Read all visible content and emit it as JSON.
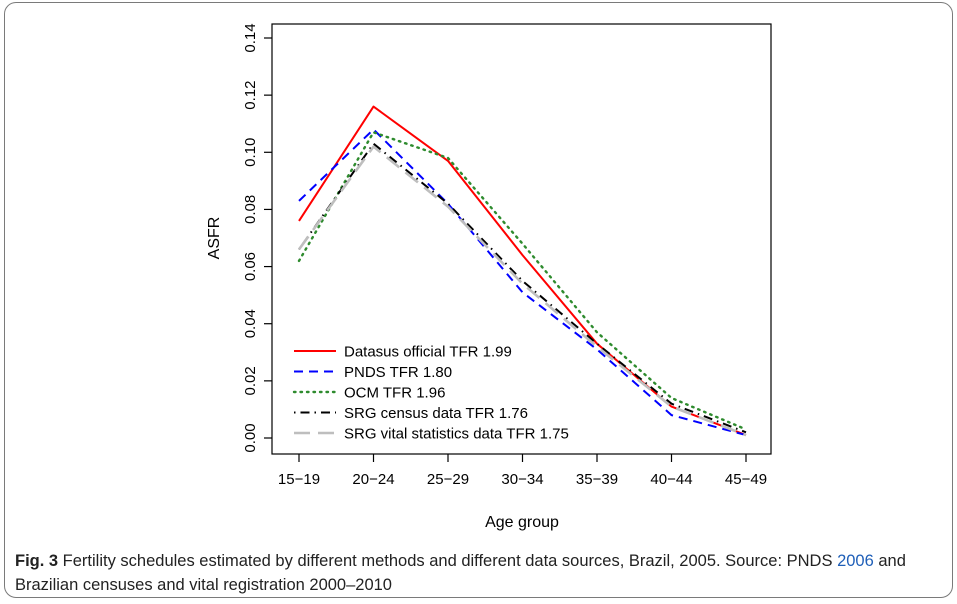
{
  "caption": {
    "label": "Fig. 3",
    "text_part1": " Fertility schedules estimated by different methods and different data sources, Brazil, 2005. Source: PNDS ",
    "link": "2006",
    "text_part2": " and Brazilian censuses and vital registration 2000–2010"
  },
  "chart_data": {
    "type": "line",
    "xlabel": "Age group",
    "ylabel": "ASFR",
    "categories": [
      "15−19",
      "20−24",
      "25−29",
      "30−34",
      "35−39",
      "40−44",
      "45−49"
    ],
    "ylim": [
      0,
      0.14
    ],
    "yticks": [
      0.0,
      0.02,
      0.04,
      0.06,
      0.08,
      0.1,
      0.12,
      0.14
    ],
    "ytick_labels": [
      "0.00",
      "0.02",
      "0.04",
      "0.06",
      "0.08",
      "0.10",
      "0.12",
      "0.14"
    ],
    "grid": false,
    "legend_position": "bottom-left",
    "series": [
      {
        "name": "Datasus official TFR 1.99",
        "color": "#ff0000",
        "dash": "solid",
        "values": [
          0.076,
          0.116,
          0.097,
          0.064,
          0.033,
          0.011,
          0.001
        ]
      },
      {
        "name": "PNDS TFR 1.80",
        "color": "#0000ff",
        "dash": "dashed",
        "values": [
          0.083,
          0.108,
          0.082,
          0.051,
          0.031,
          0.008,
          0.001
        ]
      },
      {
        "name": "OCM TFR 1.96",
        "color": "#2e8b2e",
        "dash": "dotted",
        "values": [
          0.062,
          0.107,
          0.098,
          0.068,
          0.037,
          0.014,
          0.003
        ]
      },
      {
        "name": "SRG census data TFR 1.76",
        "color": "#000000",
        "dash": "dotdash",
        "values": [
          0.066,
          0.103,
          0.082,
          0.055,
          0.033,
          0.012,
          0.002
        ]
      },
      {
        "name": "SRG vital statistics data TFR 1.75",
        "color": "#bebebe",
        "dash": "longdash",
        "values": [
          0.066,
          0.102,
          0.081,
          0.054,
          0.032,
          0.011,
          0.001
        ]
      }
    ]
  }
}
